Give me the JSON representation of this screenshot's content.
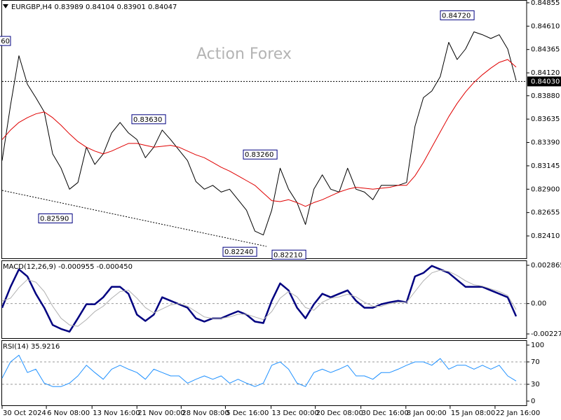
{
  "chart_data": [
    {
      "type": "line",
      "title": "EURGBP,H4 0.83989 0.84104 0.83901 0.84047",
      "watermark": "Action Forex",
      "xlim": [
        -0.25,
        62.25
      ],
      "ylim": [
        0.82168,
        0.84884
      ],
      "yticks": [
        0.84855,
        {
          "value": 0.8461,
          "label": "0.84610"
        },
        0.84365,
        {
          "value": 0.8412,
          "label": "0.84120"
        },
        {
          "value": 0.8388,
          "label": "0.83880"
        },
        0.83635,
        {
          "value": 0.8339,
          "label": "0.83390"
        },
        0.83145,
        {
          "value": 0.829,
          "label": "0.82900"
        },
        0.82655,
        {
          "value": 0.8241,
          "label": "0.82410"
        }
      ],
      "last_price": {
        "value": 0.8403,
        "label": "0.84030"
      },
      "price_labels": [
        {
          "value": 0.8472,
          "label": "0.84720"
        },
        {
          "value": 0.8363,
          "label": "0.83630"
        },
        {
          "value": 0.8326,
          "label": "0.83260"
        },
        {
          "value": 0.8259,
          "label": "0.82590"
        },
        {
          "value": 0.8224,
          "label": "0.82240"
        },
        {
          "value": 0.8221,
          "label": "0.82210"
        }
      ],
      "clipped_label": "60",
      "series": [
        {
          "color": "#000000",
          "values": [
            0.832,
            0.8378,
            0.843,
            0.84,
            0.8386,
            0.8371,
            0.8327,
            0.8312,
            0.829,
            0.8297,
            0.8334,
            0.8316,
            0.8327,
            0.8349,
            0.836,
            0.8349,
            0.8342,
            0.8323,
            0.8334,
            0.8352,
            0.8342,
            0.8331,
            0.832,
            0.8298,
            0.829,
            0.8294,
            0.8287,
            0.829,
            0.8279,
            0.8268,
            0.8246,
            0.8242,
            0.8268,
            0.8312,
            0.829,
            0.8276,
            0.8253,
            0.829,
            0.8305,
            0.829,
            0.8287,
            0.8312,
            0.829,
            0.8287,
            0.8279,
            0.8294,
            0.8294,
            0.8294,
            0.8297,
            0.8356,
            0.8386,
            0.8393,
            0.8408,
            0.8444,
            0.8426,
            0.8437,
            0.8455,
            0.8452,
            0.8448,
            0.8452,
            0.8437,
            0.8404
          ]
        },
        {
          "color": "#e00000",
          "values": [
            0.8342,
            0.8352,
            0.836,
            0.8365,
            0.8369,
            0.8371,
            0.8365,
            0.8357,
            0.8348,
            0.834,
            0.8334,
            0.833,
            0.8327,
            0.833,
            0.8334,
            0.8338,
            0.8338,
            0.8336,
            0.8334,
            0.8335,
            0.8336,
            0.8334,
            0.833,
            0.8326,
            0.8323,
            0.8318,
            0.8313,
            0.8309,
            0.8304,
            0.8299,
            0.8294,
            0.8286,
            0.8278,
            0.8277,
            0.8279,
            0.8276,
            0.8272,
            0.8276,
            0.8279,
            0.8283,
            0.8287,
            0.829,
            0.8292,
            0.8291,
            0.829,
            0.8291,
            0.8292,
            0.8294,
            0.8294,
            0.8304,
            0.8318,
            0.8334,
            0.835,
            0.8366,
            0.838,
            0.8392,
            0.8402,
            0.841,
            0.8417,
            0.8423,
            0.8426,
            0.8418
          ]
        }
      ]
    },
    {
      "type": "line",
      "title": "MACD(12,26,9) -0.000955 -0.000450",
      "xlim": [
        -0.25,
        62.25
      ],
      "ylim": [
        -0.002636,
        0.00323
      ],
      "yticks": [
        0.002865,
        {
          "value": 0,
          "label": "0.00"
        },
        -0.002271
      ],
      "levels": [
        0
      ],
      "series": [
        {
          "color": "#000080",
          "values": [
            -0.00031,
            0.00125,
            0.00256,
            0.00203,
            0.00073,
            -0.00031,
            -0.0016,
            -0.0019,
            -0.0021,
            -0.0011,
            -5e-05,
            -5e-05,
            0.00047,
            0.00125,
            0.00125,
            0.00073,
            -0.00083,
            -0.0013,
            -0.00083,
            0.00047,
            0.00021,
            -5e-05,
            -0.00031,
            -0.0011,
            -0.00135,
            -0.0011,
            -0.0011,
            -0.00083,
            -0.00057,
            -0.00083,
            -0.00135,
            -0.00146,
            0.00021,
            0.00151,
            0.00099,
            -0.00031,
            -0.0011,
            -5e-05,
            0.00073,
            0.00047,
            0.00073,
            0.00099,
            0.00021,
            -0.00031,
            -0.00031,
            -5e-05,
            0.0001,
            0.00021,
            0.0001,
            0.00203,
            0.00229,
            0.00282,
            0.00256,
            0.00229,
            0.00177,
            0.00125,
            0.00125,
            0.00125,
            0.00099,
            0.00073,
            0.00047,
            -0.000955
          ]
        },
        {
          "color": "#b0b0b0",
          "values": [
            0.0002,
            0.0004,
            0.0012,
            0.0018,
            0.0016,
            0.0009,
            -0.0002,
            -0.0011,
            -0.0016,
            -0.0017,
            -0.0012,
            -0.0006,
            -0.0002,
            0.0004,
            0.0009,
            0.001,
            0.0004,
            -0.0003,
            -0.0007,
            -0.0004,
            -0.0001,
            0.0,
            -0.0002,
            -0.0006,
            -0.001,
            -0.0011,
            -0.0011,
            -0.001,
            -0.0008,
            -0.0008,
            -0.001,
            -0.0012,
            -0.0006,
            0.0004,
            0.0009,
            0.0005,
            -0.0003,
            -0.0005,
            0.0001,
            0.0004,
            0.0005,
            0.0007,
            0.0005,
            0.0001,
            -0.0002,
            -0.0002,
            0.0,
            0.0001,
            0.0001,
            0.0009,
            0.0017,
            0.0023,
            0.0025,
            0.0024,
            0.0021,
            0.0017,
            0.0014,
            0.0013,
            0.0011,
            0.0009,
            0.0006,
            -0.00045
          ]
        }
      ]
    },
    {
      "type": "line",
      "title": "RSI(14) 35.9216",
      "xlim": [
        -0.25,
        62.25
      ],
      "ylim": [
        -8.75,
        108.75
      ],
      "yticks": [
        100,
        70,
        30,
        0
      ],
      "levels": [
        70,
        30
      ],
      "xticks": [
        {
          "value": 0,
          "label": "30 Oct 2024"
        },
        {
          "value": 5.25,
          "label": "6 Nov 08:00"
        },
        {
          "value": 10.67,
          "label": "13 Nov 16:00"
        },
        {
          "value": 16,
          "label": "21 Nov 00:00"
        },
        {
          "value": 21.25,
          "label": "28 Nov 08:00"
        },
        {
          "value": 26.5,
          "label": "5 Dec 16:00"
        },
        {
          "value": 31.92,
          "label": "13 Dec 00:00"
        },
        {
          "value": 37.17,
          "label": "20 Dec 08:00"
        },
        {
          "value": 42.58,
          "label": "30 Dec 16:00"
        },
        {
          "value": 47.92,
          "label": "8 Jan 00:00"
        },
        {
          "value": 53.17,
          "label": "15 Jan 08:00"
        },
        {
          "value": 58.5,
          "label": "22 Jan 16:00"
        }
      ],
      "series": [
        {
          "color": "#1e90ff",
          "values": [
            41,
            70,
            82,
            51,
            57,
            32,
            26,
            26,
            32,
            45,
            64,
            51,
            39,
            57,
            64,
            57,
            51,
            39,
            57,
            51,
            45,
            45,
            32,
            39,
            45,
            39,
            45,
            32,
            39,
            32,
            26,
            32,
            64,
            70,
            57,
            32,
            26,
            51,
            57,
            51,
            57,
            64,
            45,
            45,
            39,
            51,
            51,
            57,
            64,
            70,
            70,
            64,
            76,
            57,
            64,
            64,
            57,
            64,
            57,
            64,
            45,
            35.9216
          ]
        }
      ]
    }
  ]
}
